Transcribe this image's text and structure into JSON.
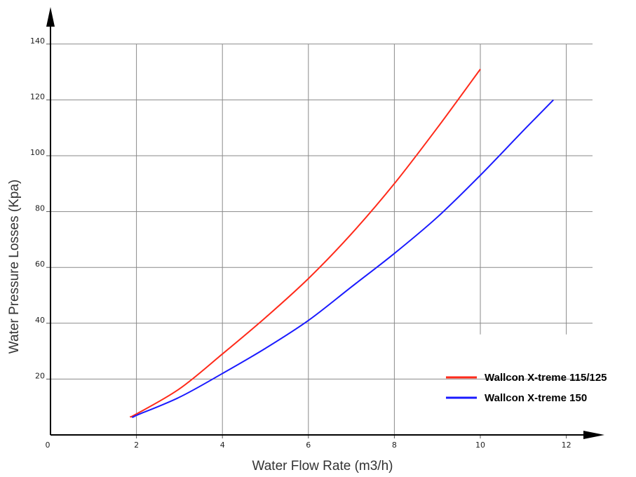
{
  "chart_data": {
    "type": "line",
    "xlabel": "Water Flow Rate (m3/h)",
    "ylabel": "Water Pressure Losses (Kpa)",
    "xlim": [
      0,
      12.5
    ],
    "ylim": [
      0,
      145
    ],
    "x_ticks": [
      "0",
      "2",
      "4",
      "6",
      "8",
      "10",
      "12"
    ],
    "y_ticks": [
      "20",
      "40",
      "60",
      "80",
      "100",
      "120",
      "140"
    ],
    "grid": true,
    "legend_position": "bottom-right",
    "series": [
      {
        "name": "Wallcon X-treme 115/125",
        "color": "#ff2a1a",
        "x": [
          1.85,
          2.0,
          3.0,
          4.0,
          5.0,
          6.0,
          7.0,
          8.0,
          9.0,
          10.0
        ],
        "y": [
          6.5,
          7.5,
          16.5,
          29,
          42,
          56,
          72,
          90,
          110,
          131
        ]
      },
      {
        "name": "Wallcon X-treme 150",
        "color": "#1a1aff",
        "x": [
          1.95,
          2.0,
          3.0,
          4.0,
          5.0,
          6.0,
          7.0,
          8.0,
          9.0,
          10.0,
          11.0,
          11.7
        ],
        "y": [
          6.5,
          7.0,
          13.5,
          22,
          31,
          41,
          53,
          65,
          78,
          93,
          109,
          120
        ]
      }
    ]
  }
}
